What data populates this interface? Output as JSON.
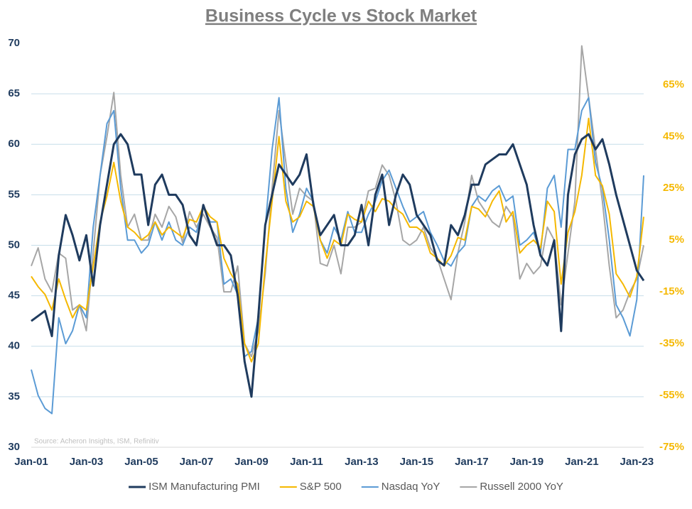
{
  "chart_data": {
    "type": "line",
    "title": "Business Cycle vs Stock Market",
    "source": "Source: Acheron Insights, ISM, Refinitiv",
    "categories": [
      "Jan-01",
      null,
      null,
      null,
      null,
      null,
      null,
      null,
      "Jan-03",
      null,
      null,
      null,
      null,
      null,
      null,
      null,
      "Jan-05",
      null,
      null,
      null,
      null,
      null,
      null,
      null,
      "Jan-07",
      null,
      null,
      null,
      null,
      null,
      null,
      null,
      "Jan-09",
      null,
      null,
      null,
      null,
      null,
      null,
      null,
      "Jan-11",
      null,
      null,
      null,
      null,
      null,
      null,
      null,
      "Jan-13",
      null,
      null,
      null,
      null,
      null,
      null,
      null,
      "Jan-15",
      null,
      null,
      null,
      null,
      null,
      null,
      null,
      "Jan-17",
      null,
      null,
      null,
      null,
      null,
      null,
      null,
      "Jan-19",
      null,
      null,
      null,
      null,
      null,
      null,
      null,
      "Jan-21",
      null,
      null,
      null,
      null,
      null,
      null,
      null,
      "Jan-23",
      null
    ],
    "ylim": [
      30,
      70
    ],
    "yticks": [
      30,
      35,
      40,
      45,
      50,
      55,
      60,
      65,
      70
    ],
    "y2lim": [
      -75,
      81
    ],
    "y2ticks": [
      {
        "value": -75,
        "label": "-75%"
      },
      {
        "value": -55,
        "label": "-55%"
      },
      {
        "value": -35,
        "label": "-35%"
      },
      {
        "value": -15,
        "label": "-15%"
      },
      {
        "value": 5,
        "label": "5%"
      },
      {
        "value": 25,
        "label": "25%"
      },
      {
        "value": 45,
        "label": "45%"
      },
      {
        "value": 65,
        "label": "65%"
      }
    ],
    "grid": true,
    "legend": "bottom",
    "series": [
      {
        "name": "ISM Manufacturing PMI",
        "color": "#1f3b5e",
        "values": [
          42.5,
          43,
          43.5,
          41,
          49,
          53,
          51,
          48.5,
          51,
          46,
          52,
          56,
          60,
          61,
          60,
          57,
          57,
          52,
          56,
          57,
          55,
          55,
          54,
          51,
          50,
          54,
          52,
          50,
          50,
          49,
          45,
          38.5,
          35,
          43,
          52,
          55,
          58,
          57,
          56,
          57,
          59,
          54,
          51,
          52,
          53,
          50,
          50,
          51,
          54,
          50,
          55,
          57,
          52,
          55,
          57,
          56,
          53,
          52,
          51,
          48.5,
          48,
          52,
          51,
          53,
          56,
          56,
          58,
          58.5,
          59,
          59,
          60,
          58,
          56,
          52,
          49,
          48,
          50.5,
          41.5,
          55,
          59,
          60.5,
          61,
          59.5,
          60.5,
          58,
          55,
          52.5,
          50,
          47.5,
          46.5
        ]
      },
      {
        "name": "S&P 500",
        "color": "#f5b800",
        "axis": "y2",
        "values": [
          -9,
          -13,
          -16,
          -22,
          -10,
          -18,
          -25,
          -20,
          -22,
          -5,
          12,
          22,
          35,
          20,
          10,
          8,
          5,
          7,
          12,
          7,
          10,
          8,
          6,
          13,
          12,
          18,
          14,
          12,
          -2,
          -8,
          -12,
          -35,
          -42,
          -35,
          -5,
          20,
          45,
          20,
          12,
          14,
          20,
          18,
          5,
          -2,
          5,
          3,
          15,
          13,
          12,
          20,
          16,
          21,
          20,
          17,
          15,
          10,
          10,
          8,
          0,
          -2,
          -5,
          -1,
          6,
          5,
          18,
          17,
          14,
          20,
          24,
          12,
          16,
          0,
          3,
          5,
          2,
          20,
          16,
          -12,
          8,
          16,
          30,
          52,
          30,
          26,
          15,
          -8,
          -12,
          -17,
          -9,
          14
        ]
      },
      {
        "name": "Nasdaq YoY",
        "color": "#5b9bd5",
        "axis": "y2",
        "values": [
          -45,
          -55,
          -60,
          -62,
          -25,
          -35,
          -30,
          -20,
          -25,
          10,
          30,
          50,
          55,
          25,
          5,
          5,
          0,
          3,
          12,
          5,
          12,
          5,
          3,
          10,
          8,
          18,
          12,
          12,
          -12,
          -10,
          -16,
          -40,
          -38,
          -25,
          10,
          40,
          60,
          25,
          8,
          15,
          25,
          20,
          5,
          0,
          10,
          5,
          16,
          8,
          8,
          15,
          20,
          28,
          32,
          25,
          18,
          12,
          14,
          16,
          8,
          3,
          -3,
          -5,
          0,
          3,
          18,
          22,
          20,
          24,
          26,
          20,
          22,
          3,
          5,
          8,
          0,
          25,
          30,
          10,
          40,
          40,
          55,
          60,
          35,
          25,
          5,
          -20,
          -25,
          -32,
          -18,
          30
        ]
      },
      {
        "name": "Russell 2000 YoY",
        "color": "#a6a6a6",
        "axis": "y2",
        "values": [
          -5,
          2,
          -10,
          -15,
          0,
          -2,
          -22,
          -20,
          -30,
          0,
          30,
          45,
          62,
          30,
          10,
          15,
          5,
          5,
          15,
          10,
          18,
          14,
          4,
          16,
          10,
          15,
          10,
          6,
          -15,
          -15,
          -5,
          -35,
          -40,
          -30,
          -8,
          25,
          55,
          35,
          15,
          25,
          22,
          20,
          -4,
          -5,
          3,
          -8,
          10,
          10,
          12,
          24,
          25,
          34,
          30,
          20,
          5,
          3,
          5,
          10,
          2,
          -2,
          -10,
          -18,
          0,
          12,
          30,
          20,
          16,
          12,
          10,
          18,
          14,
          -10,
          -4,
          -8,
          -5,
          10,
          5,
          -20,
          0,
          20,
          80,
          60,
          40,
          20,
          -5,
          -25,
          -22,
          -15,
          -10,
          3
        ]
      }
    ]
  }
}
